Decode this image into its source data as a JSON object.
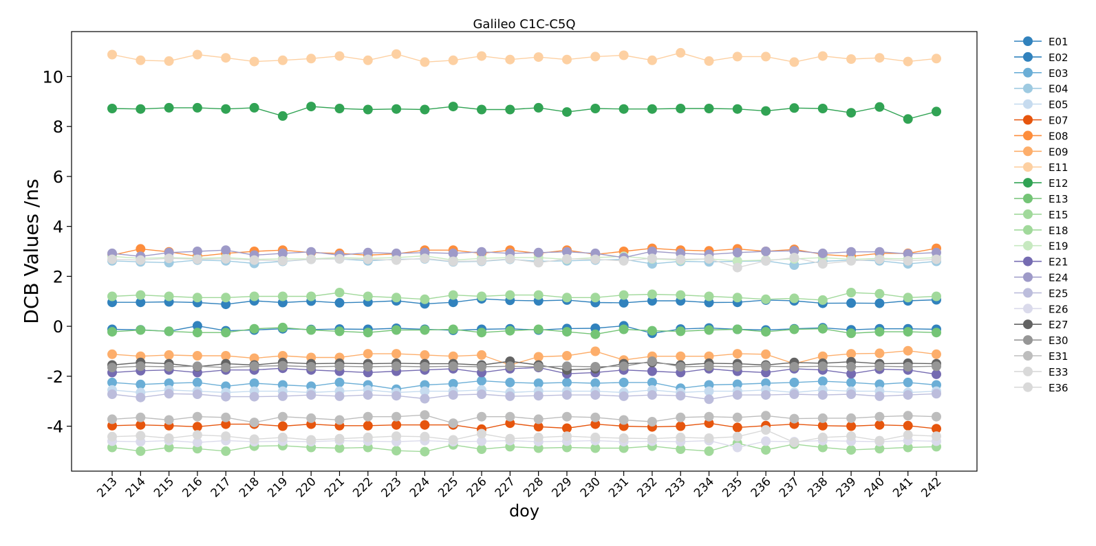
{
  "chart_data": {
    "type": "line",
    "title": "Galileo C1C-C5Q",
    "xlabel": "doy",
    "ylabel": "DCB Values /ns",
    "x": [
      213,
      214,
      215,
      216,
      217,
      218,
      219,
      220,
      221,
      222,
      223,
      224,
      225,
      226,
      227,
      228,
      229,
      230,
      231,
      232,
      233,
      234,
      235,
      236,
      237,
      238,
      239,
      240,
      241,
      242
    ],
    "x_ticks": [
      "213",
      "214",
      "215",
      "216",
      "217",
      "218",
      "219",
      "220",
      "221",
      "222",
      "223",
      "224",
      "225",
      "226",
      "227",
      "228",
      "229",
      "230",
      "231",
      "232",
      "233",
      "234",
      "235",
      "236",
      "237",
      "238",
      "239",
      "240",
      "241",
      "242"
    ],
    "ylim": [
      -5.8,
      11.8
    ],
    "y_ticks": [
      -4,
      -2,
      0,
      2,
      4,
      6,
      8,
      10
    ],
    "y_tick_labels": [
      "-4",
      "-2",
      "0",
      "2",
      "4",
      "6",
      "8",
      "10"
    ],
    "grid": false,
    "legend_position": "outside-right",
    "series": [
      {
        "name": "E01",
        "color": "#3182bd",
        "values": [
          -0.12,
          -0.14,
          -0.2,
          0.02,
          -0.18,
          -0.15,
          -0.1,
          -0.13,
          -0.11,
          -0.12,
          -0.08,
          -0.12,
          -0.16,
          -0.12,
          -0.1,
          -0.15,
          -0.09,
          -0.08,
          0.02,
          -0.28,
          -0.11,
          -0.07,
          -0.12,
          -0.15,
          -0.1,
          -0.06,
          -0.14,
          -0.1,
          -0.1,
          -0.12
        ]
      },
      {
        "name": "E02",
        "color": "#3182bd",
        "values": [
          0.96,
          0.96,
          0.98,
          0.95,
          0.88,
          1.02,
          0.95,
          1.01,
          0.94,
          0.97,
          1.02,
          0.9,
          0.96,
          1.1,
          1.04,
          1.02,
          1.05,
          0.95,
          0.94,
          1.02,
          1.02,
          0.95,
          0.96,
          1.05,
          1.02,
          0.92,
          0.93,
          0.92,
          1.02,
          1.06
        ]
      },
      {
        "name": "E03",
        "color": "#6baed6",
        "values": [
          -2.25,
          -2.33,
          -2.28,
          -2.25,
          -2.4,
          -2.28,
          -2.35,
          -2.4,
          -2.25,
          -2.35,
          -2.52,
          -2.35,
          -2.3,
          -2.18,
          -2.25,
          -2.28,
          -2.25,
          -2.28,
          -2.25,
          -2.25,
          -2.48,
          -2.35,
          -2.32,
          -2.28,
          -2.25,
          -2.2,
          -2.25,
          -2.32,
          -2.25,
          -2.35
        ]
      },
      {
        "name": "E04",
        "color": "#9ecae1",
        "values": [
          2.62,
          2.58,
          2.55,
          2.65,
          2.62,
          2.52,
          2.6,
          2.68,
          2.7,
          2.62,
          2.68,
          2.7,
          2.58,
          2.6,
          2.68,
          2.6,
          2.62,
          2.65,
          2.68,
          2.5,
          2.6,
          2.58,
          2.6,
          2.62,
          2.45,
          2.6,
          2.65,
          2.62,
          2.5,
          2.6
        ]
      },
      {
        "name": "E05",
        "color": "#c6dbef",
        "values": [
          -2.55,
          -2.65,
          -2.55,
          -2.6,
          -2.65,
          -2.6,
          -2.6,
          -2.65,
          -2.6,
          -2.55,
          -2.65,
          -2.6,
          -2.6,
          -2.55,
          -2.65,
          -2.6,
          -2.6,
          -2.6,
          -2.65,
          -2.55,
          -2.65,
          -2.6,
          -2.6,
          -2.55,
          -2.65,
          -2.55,
          -2.6,
          -2.6,
          -2.65,
          -2.6
        ]
      },
      {
        "name": "E07",
        "color": "#e6550d",
        "values": [
          -3.98,
          -3.95,
          -3.98,
          -4.02,
          -3.92,
          -3.92,
          -4.0,
          -3.92,
          -3.98,
          -3.98,
          -3.95,
          -3.95,
          -3.95,
          -4.12,
          -3.88,
          -4.02,
          -4.08,
          -3.92,
          -4.0,
          -4.03,
          -4.0,
          -3.88,
          -4.05,
          -3.98,
          -3.92,
          -3.98,
          -4.0,
          -3.95,
          -3.98,
          -4.1
        ]
      },
      {
        "name": "E08",
        "color": "#fd8d3c",
        "values": [
          2.85,
          3.1,
          2.98,
          2.8,
          2.92,
          3.0,
          3.05,
          2.95,
          2.92,
          2.85,
          2.9,
          3.05,
          3.05,
          2.92,
          3.05,
          2.92,
          3.05,
          2.88,
          3.0,
          3.12,
          3.05,
          3.02,
          3.1,
          3.0,
          3.08,
          2.88,
          2.8,
          2.92,
          2.92,
          3.12
        ]
      },
      {
        "name": "E09",
        "color": "#fdae6b",
        "values": [
          -1.12,
          -1.2,
          -1.15,
          -1.18,
          -1.18,
          -1.28,
          -1.18,
          -1.25,
          -1.25,
          -1.1,
          -1.1,
          -1.15,
          -1.2,
          -1.15,
          -1.55,
          -1.22,
          -1.18,
          -1.0,
          -1.35,
          -1.2,
          -1.2,
          -1.2,
          -1.1,
          -1.12,
          -1.5,
          -1.2,
          -1.1,
          -1.08,
          -0.98,
          -1.12
        ]
      },
      {
        "name": "E11",
        "color": "#fdd0a2",
        "values": [
          10.88,
          10.65,
          10.62,
          10.88,
          10.75,
          10.6,
          10.65,
          10.72,
          10.82,
          10.65,
          10.9,
          10.58,
          10.65,
          10.82,
          10.68,
          10.78,
          10.68,
          10.8,
          10.85,
          10.65,
          10.95,
          10.62,
          10.8,
          10.8,
          10.58,
          10.82,
          10.7,
          10.75,
          10.6,
          10.72
        ]
      },
      {
        "name": "E12",
        "color": "#31a354",
        "values": [
          8.72,
          8.7,
          8.75,
          8.75,
          8.7,
          8.75,
          8.42,
          8.8,
          8.72,
          8.68,
          8.7,
          8.68,
          8.8,
          8.68,
          8.68,
          8.75,
          8.58,
          8.72,
          8.7,
          8.7,
          8.72,
          8.72,
          8.7,
          8.62,
          8.74,
          8.72,
          8.55,
          8.78,
          8.3,
          8.6
        ]
      },
      {
        "name": "E13",
        "color": "#74c476",
        "values": [
          -0.22,
          -0.15,
          -0.2,
          -0.25,
          -0.25,
          -0.1,
          -0.05,
          -0.15,
          -0.2,
          -0.25,
          -0.15,
          -0.15,
          -0.12,
          -0.25,
          -0.18,
          -0.12,
          -0.22,
          -0.32,
          -0.12,
          -0.18,
          -0.2,
          -0.15,
          -0.12,
          -0.22,
          -0.12,
          -0.1,
          -0.28,
          -0.22,
          -0.22,
          -0.25
        ]
      },
      {
        "name": "E15",
        "color": "#a1d99b",
        "values": [
          1.2,
          1.25,
          1.2,
          1.15,
          1.15,
          1.2,
          1.2,
          1.2,
          1.35,
          1.2,
          1.15,
          1.08,
          1.25,
          1.2,
          1.25,
          1.25,
          1.15,
          1.15,
          1.25,
          1.28,
          1.25,
          1.2,
          1.15,
          1.08,
          1.12,
          1.05,
          1.35,
          1.3,
          1.15,
          1.2
        ]
      },
      {
        "name": "E18",
        "color": "#a1d99b",
        "values": [
          -4.85,
          -5.0,
          -4.85,
          -4.9,
          -5.0,
          -4.8,
          -4.78,
          -4.85,
          -4.88,
          -4.85,
          -4.98,
          -5.02,
          -4.75,
          -4.92,
          -4.82,
          -4.88,
          -4.85,
          -4.88,
          -4.88,
          -4.8,
          -4.92,
          -5.0,
          -4.68,
          -4.95,
          -4.72,
          -4.85,
          -4.95,
          -4.9,
          -4.85,
          -4.82
        ]
      },
      {
        "name": "E19",
        "color": "#c7e9c0",
        "values": [
          2.8,
          2.72,
          2.75,
          2.72,
          2.75,
          2.68,
          2.7,
          2.7,
          2.75,
          2.72,
          2.75,
          2.82,
          2.65,
          2.72,
          2.75,
          2.75,
          2.68,
          2.75,
          2.8,
          2.7,
          2.65,
          2.7,
          2.62,
          2.65,
          2.7,
          2.75,
          2.68,
          2.72,
          2.7,
          2.75
        ]
      },
      {
        "name": "E21",
        "color": "#756bb1",
        "values": [
          -1.85,
          -1.78,
          -1.75,
          -1.85,
          -1.75,
          -1.75,
          -1.68,
          -1.75,
          -1.8,
          -1.85,
          -1.8,
          -1.75,
          -1.7,
          -1.85,
          -1.7,
          -1.65,
          -1.9,
          -1.85,
          -1.75,
          -1.8,
          -1.85,
          -1.7,
          -1.8,
          -1.85,
          -1.7,
          -1.75,
          -1.9,
          -1.72,
          -1.75,
          -1.92
        ]
      },
      {
        "name": "E24",
        "color": "#9e9ac8",
        "values": [
          2.92,
          2.8,
          2.95,
          3.0,
          3.05,
          2.85,
          2.92,
          2.98,
          2.85,
          2.95,
          2.92,
          2.95,
          2.92,
          2.98,
          2.92,
          2.95,
          2.98,
          2.92,
          2.75,
          3.0,
          2.92,
          2.88,
          2.95,
          3.0,
          3.02,
          2.92,
          2.98,
          2.98,
          2.9,
          2.95
        ]
      },
      {
        "name": "E25",
        "color": "#bcbddc",
        "values": [
          -2.72,
          -2.85,
          -2.7,
          -2.72,
          -2.82,
          -2.82,
          -2.8,
          -2.75,
          -2.8,
          -2.75,
          -2.78,
          -2.9,
          -2.75,
          -2.72,
          -2.8,
          -2.78,
          -2.75,
          -2.75,
          -2.8,
          -2.75,
          -2.78,
          -2.92,
          -2.75,
          -2.75,
          -2.72,
          -2.75,
          -2.72,
          -2.8,
          -2.75,
          -2.7
        ]
      },
      {
        "name": "E26",
        "color": "#dadaeb",
        "values": [
          -4.6,
          -4.62,
          -4.58,
          -4.65,
          -4.58,
          -4.62,
          -4.6,
          -4.62,
          -4.58,
          -4.6,
          -4.62,
          -4.58,
          -4.62,
          -4.6,
          -4.58,
          -4.62,
          -4.6,
          -4.58,
          -4.62,
          -4.6,
          -4.62,
          -4.58,
          -4.85,
          -4.6,
          -4.62,
          -4.58,
          -4.6,
          -4.62,
          -4.58,
          -4.6
        ]
      },
      {
        "name": "E27",
        "color": "#636363",
        "values": [
          -1.55,
          -1.45,
          -1.5,
          -1.62,
          -1.5,
          -1.55,
          -1.45,
          -1.5,
          -1.48,
          -1.5,
          -1.48,
          -1.5,
          -1.5,
          -1.55,
          -1.4,
          -1.55,
          -1.75,
          -1.7,
          -1.5,
          -1.45,
          -1.55,
          -1.48,
          -1.5,
          -1.55,
          -1.45,
          -1.48,
          -1.42,
          -1.5,
          -1.48,
          -1.5
        ]
      },
      {
        "name": "E30",
        "color": "#969696",
        "values": [
          -1.65,
          -1.6,
          -1.62,
          -1.6,
          -1.65,
          -1.6,
          -1.58,
          -1.62,
          -1.6,
          -1.62,
          -1.6,
          -1.62,
          -1.6,
          -1.62,
          -1.6,
          -1.62,
          -1.6,
          -1.62,
          -1.6,
          -1.4,
          -1.62,
          -1.6,
          -1.62,
          -1.6,
          -1.62,
          -1.6,
          -1.62,
          -1.6,
          -1.62,
          -1.6
        ]
      },
      {
        "name": "E31",
        "color": "#bdbdbd",
        "values": [
          -3.72,
          -3.65,
          -3.75,
          -3.62,
          -3.65,
          -3.85,
          -3.62,
          -3.68,
          -3.75,
          -3.62,
          -3.62,
          -3.55,
          -3.88,
          -3.62,
          -3.62,
          -3.72,
          -3.62,
          -3.65,
          -3.75,
          -3.82,
          -3.65,
          -3.62,
          -3.65,
          -3.58,
          -3.7,
          -3.68,
          -3.68,
          -3.62,
          -3.58,
          -3.62
        ]
      },
      {
        "name": "E33",
        "color": "#d9d9d9",
        "values": [
          -4.42,
          -4.38,
          -4.48,
          -4.35,
          -4.4,
          -4.52,
          -4.45,
          -4.55,
          -4.5,
          -4.45,
          -4.4,
          -4.42,
          -4.55,
          -4.3,
          -4.5,
          -4.45,
          -4.4,
          -4.45,
          -4.48,
          -4.5,
          -4.45,
          -4.48,
          -4.42,
          -4.15,
          -4.65,
          -4.45,
          -4.4,
          -4.58,
          -4.35,
          -4.4
        ]
      },
      {
        "name": "E36",
        "color": "#d9d9d9",
        "values": [
          2.68,
          2.65,
          2.72,
          2.68,
          2.7,
          2.65,
          2.62,
          2.68,
          2.7,
          2.68,
          2.65,
          2.72,
          2.6,
          2.62,
          2.7,
          2.55,
          2.7,
          2.68,
          2.62,
          2.72,
          2.68,
          2.7,
          2.35,
          2.62,
          2.75,
          2.5,
          2.62,
          2.68,
          2.62,
          2.68
        ]
      }
    ]
  }
}
